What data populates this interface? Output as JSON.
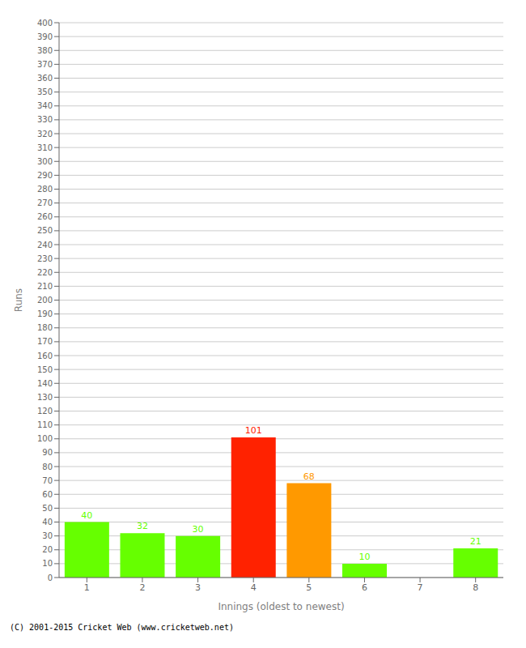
{
  "chart_data": {
    "type": "bar",
    "xlabel": "Innings (oldest to newest)",
    "ylabel": "Runs",
    "categories": [
      "1",
      "2",
      "3",
      "4",
      "5",
      "6",
      "7",
      "8"
    ],
    "values": [
      40,
      32,
      30,
      101,
      68,
      10,
      0,
      21
    ],
    "colors": [
      "#66ff00",
      "#66ff00",
      "#66ff00",
      "#ff2200",
      "#ff9900",
      "#66ff00",
      "#66ff00",
      "#66ff00"
    ],
    "ylim": [
      0,
      400
    ],
    "yticks": [
      0,
      10,
      20,
      30,
      40,
      50,
      60,
      70,
      80,
      90,
      100,
      110,
      120,
      130,
      140,
      150,
      160,
      170,
      180,
      190,
      200,
      210,
      220,
      230,
      240,
      250,
      260,
      270,
      280,
      290,
      300,
      310,
      320,
      330,
      340,
      350,
      360,
      370,
      380,
      390,
      400
    ],
    "grid": true,
    "data_labels": true,
    "footer": "(C) 2001-2015 Cricket Web (www.cricketweb.net)"
  }
}
